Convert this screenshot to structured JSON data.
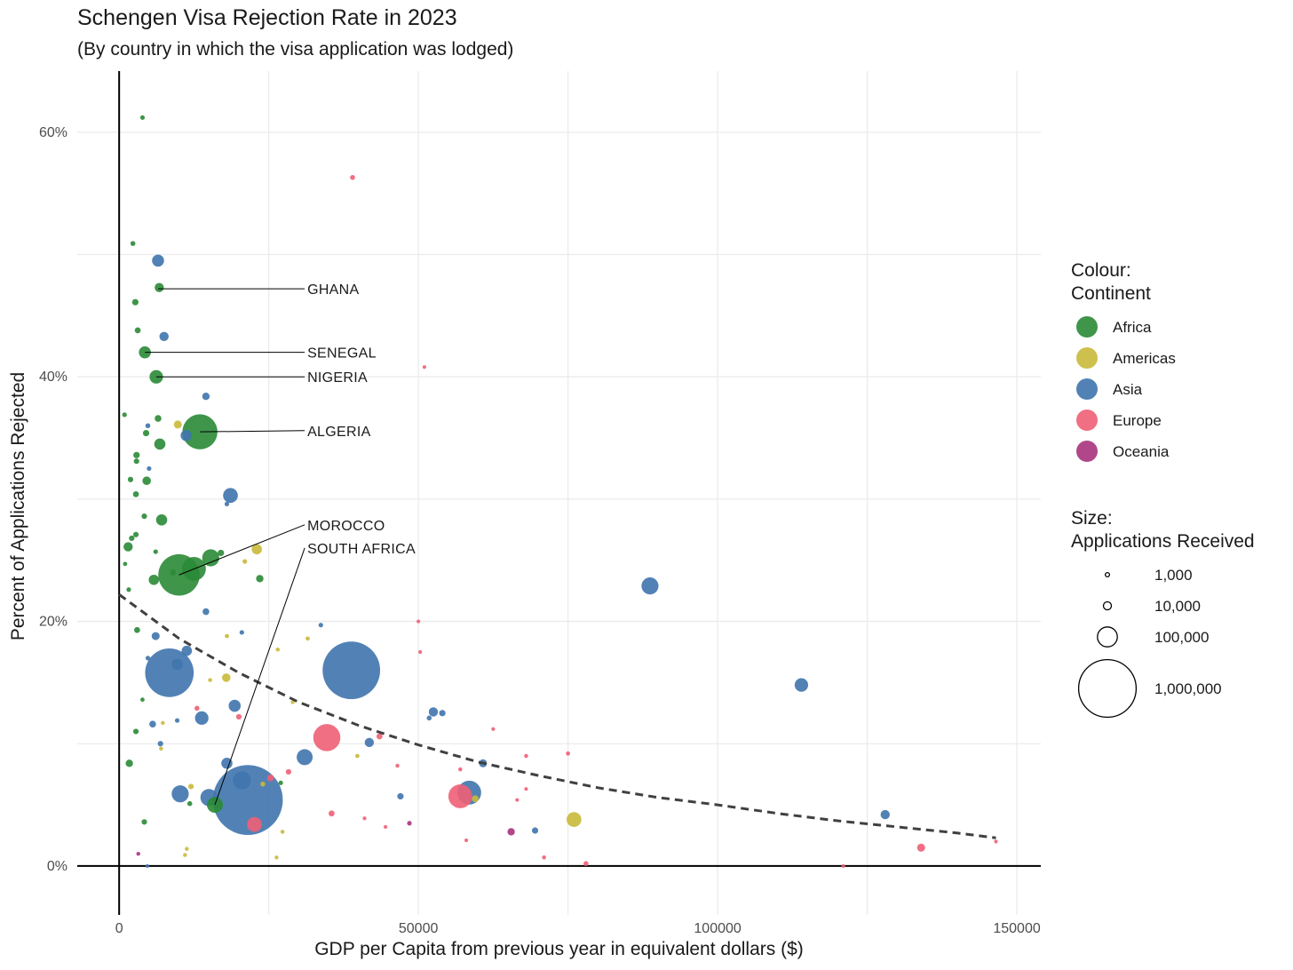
{
  "title": "Schengen Visa Rejection Rate in 2023",
  "subtitle": "(By country in which the visa application was lodged)",
  "chart_data": {
    "type": "scatter",
    "xlabel": "GDP per Capita from previous year in equivalent dollars ($)",
    "ylabel": "Percent of Applications Rejected",
    "xlim": [
      -7000,
      154000
    ],
    "ylim": [
      -4,
      65
    ],
    "x_ticks": [
      {
        "value": 0,
        "label": "0"
      },
      {
        "value": 50000,
        "label": "50000"
      },
      {
        "value": 100000,
        "label": "100000"
      },
      {
        "value": 150000,
        "label": "150000"
      }
    ],
    "y_ticks": [
      {
        "value": 0,
        "label": "0%"
      },
      {
        "value": 20,
        "label": "20%"
      },
      {
        "value": 40,
        "label": "40%"
      },
      {
        "value": 60,
        "label": "60%"
      }
    ],
    "grid": true,
    "colors": {
      "Africa": "#2a8a36",
      "Americas": "#c9b93a",
      "Asia": "#3f74ad",
      "Europe": "#ee5f75",
      "Oceania": "#a8337e"
    },
    "legend_colour": {
      "title": "Colour:\nContinent",
      "items": [
        "Africa",
        "Americas",
        "Asia",
        "Europe",
        "Oceania"
      ]
    },
    "legend_size": {
      "title": "Size:\nApplications Received",
      "items": [
        {
          "value": 1000,
          "label": "1,000"
        },
        {
          "value": 10000,
          "label": "10,000"
        },
        {
          "value": 100000,
          "label": "100,000"
        },
        {
          "value": 1000000,
          "label": "1,000,000"
        }
      ]
    },
    "trend_line": [
      [
        0,
        22.2
      ],
      [
        10000,
        18.6
      ],
      [
        20000,
        15.8
      ],
      [
        30000,
        13.4
      ],
      [
        40000,
        11.5
      ],
      [
        50000,
        9.9
      ],
      [
        60000,
        8.5
      ],
      [
        70000,
        7.4
      ],
      [
        80000,
        6.4
      ],
      [
        90000,
        5.6
      ],
      [
        100000,
        5.0
      ],
      [
        110000,
        4.3
      ],
      [
        120000,
        3.7
      ],
      [
        130000,
        3.2
      ],
      [
        140000,
        2.7
      ],
      [
        146500,
        2.3
      ]
    ],
    "annotations": [
      {
        "label": "GHANA",
        "x": 6500,
        "y": 47.2,
        "lx": 31000,
        "ly": 47.2
      },
      {
        "label": "SENEGAL",
        "x": 4300,
        "y": 42.0,
        "lx": 31000,
        "ly": 42.0
      },
      {
        "label": "NIGERIA",
        "x": 6200,
        "y": 40.0,
        "lx": 31000,
        "ly": 40.0
      },
      {
        "label": "ALGERIA",
        "x": 13500,
        "y": 35.5,
        "lx": 31000,
        "ly": 35.6
      },
      {
        "label": "MOROCCO",
        "x": 10000,
        "y": 23.8,
        "lx": 31000,
        "ly": 27.9
      },
      {
        "label": "SOUTH AFRICA",
        "x": 16000,
        "y": 5.0,
        "lx": 31000,
        "ly": 26.0
      }
    ],
    "points": [
      {
        "x": 3900,
        "y": 61.2,
        "c": "Africa",
        "n": 1500
      },
      {
        "x": 39000,
        "y": 56.3,
        "c": "Europe",
        "n": 2000
      },
      {
        "x": 2300,
        "y": 50.9,
        "c": "Africa",
        "n": 2000
      },
      {
        "x": 6500,
        "y": 49.5,
        "c": "Asia",
        "n": 30000
      },
      {
        "x": 6700,
        "y": 47.3,
        "c": "Africa",
        "n": 15000
      },
      {
        "x": 2700,
        "y": 46.1,
        "c": "Africa",
        "n": 5000
      },
      {
        "x": 3100,
        "y": 43.8,
        "c": "Africa",
        "n": 4000
      },
      {
        "x": 7500,
        "y": 43.3,
        "c": "Asia",
        "n": 15000
      },
      {
        "x": 4300,
        "y": 42.0,
        "c": "Africa",
        "n": 30000
      },
      {
        "x": 51000,
        "y": 40.8,
        "c": "Europe",
        "n": 500
      },
      {
        "x": 6200,
        "y": 40.0,
        "c": "Africa",
        "n": 40000
      },
      {
        "x": 14500,
        "y": 38.4,
        "c": "Asia",
        "n": 8000
      },
      {
        "x": 900,
        "y": 36.9,
        "c": "Africa",
        "n": 1500
      },
      {
        "x": 6500,
        "y": 36.6,
        "c": "Africa",
        "n": 6000
      },
      {
        "x": 9800,
        "y": 36.1,
        "c": "Americas",
        "n": 10000
      },
      {
        "x": 4800,
        "y": 36.0,
        "c": "Asia",
        "n": 2000
      },
      {
        "x": 4500,
        "y": 35.4,
        "c": "Africa",
        "n": 5000
      },
      {
        "x": 11200,
        "y": 35.2,
        "c": "Asia",
        "n": 25000
      },
      {
        "x": 13500,
        "y": 35.5,
        "c": "Africa",
        "n": 350000
      },
      {
        "x": 6800,
        "y": 34.5,
        "c": "Africa",
        "n": 25000
      },
      {
        "x": 2900,
        "y": 33.6,
        "c": "Africa",
        "n": 5000
      },
      {
        "x": 2900,
        "y": 33.1,
        "c": "Africa",
        "n": 3000
      },
      {
        "x": 5000,
        "y": 32.5,
        "c": "Asia",
        "n": 1500
      },
      {
        "x": 1900,
        "y": 31.6,
        "c": "Africa",
        "n": 3000
      },
      {
        "x": 4600,
        "y": 31.5,
        "c": "Africa",
        "n": 12000
      },
      {
        "x": 2800,
        "y": 30.4,
        "c": "Africa",
        "n": 4000
      },
      {
        "x": 18600,
        "y": 30.3,
        "c": "Asia",
        "n": 50000
      },
      {
        "x": 18000,
        "y": 29.6,
        "c": "Asia",
        "n": 1500
      },
      {
        "x": 4200,
        "y": 28.6,
        "c": "Africa",
        "n": 3000
      },
      {
        "x": 7100,
        "y": 28.3,
        "c": "Africa",
        "n": 25000
      },
      {
        "x": 2800,
        "y": 27.1,
        "c": "Africa",
        "n": 3000
      },
      {
        "x": 2100,
        "y": 26.8,
        "c": "Africa",
        "n": 3000
      },
      {
        "x": 1500,
        "y": 26.1,
        "c": "Africa",
        "n": 15000
      },
      {
        "x": 23000,
        "y": 25.9,
        "c": "Americas",
        "n": 20000
      },
      {
        "x": 6100,
        "y": 25.7,
        "c": "Africa",
        "n": 1500
      },
      {
        "x": 17000,
        "y": 25.6,
        "c": "Africa",
        "n": 5000
      },
      {
        "x": 15300,
        "y": 25.2,
        "c": "Africa",
        "n": 70000
      },
      {
        "x": 21000,
        "y": 24.9,
        "c": "Americas",
        "n": 1500
      },
      {
        "x": 1000,
        "y": 24.7,
        "c": "Africa",
        "n": 1000
      },
      {
        "x": 12500,
        "y": 24.3,
        "c": "Africa",
        "n": 150000
      },
      {
        "x": 9000,
        "y": 24.0,
        "c": "Africa",
        "n": 4000
      },
      {
        "x": 10000,
        "y": 23.8,
        "c": "Africa",
        "n": 500000
      },
      {
        "x": 23500,
        "y": 23.5,
        "c": "Africa",
        "n": 8000
      },
      {
        "x": 5800,
        "y": 23.4,
        "c": "Africa",
        "n": 20000
      },
      {
        "x": 1600,
        "y": 22.6,
        "c": "Africa",
        "n": 1500
      },
      {
        "x": 88700,
        "y": 22.9,
        "c": "Asia",
        "n": 70000
      },
      {
        "x": 14500,
        "y": 20.8,
        "c": "Asia",
        "n": 6000
      },
      {
        "x": 50000,
        "y": 20.0,
        "c": "Europe",
        "n": 500
      },
      {
        "x": 33700,
        "y": 19.7,
        "c": "Asia",
        "n": 1500
      },
      {
        "x": 3000,
        "y": 19.3,
        "c": "Africa",
        "n": 4000
      },
      {
        "x": 20500,
        "y": 19.1,
        "c": "Asia",
        "n": 1500
      },
      {
        "x": 18000,
        "y": 18.8,
        "c": "Americas",
        "n": 1000
      },
      {
        "x": 6100,
        "y": 18.8,
        "c": "Asia",
        "n": 10000
      },
      {
        "x": 31500,
        "y": 18.6,
        "c": "Americas",
        "n": 1000
      },
      {
        "x": 26500,
        "y": 17.7,
        "c": "Americas",
        "n": 800
      },
      {
        "x": 50300,
        "y": 17.5,
        "c": "Europe",
        "n": 500
      },
      {
        "x": 11300,
        "y": 17.6,
        "c": "Asia",
        "n": 20000
      },
      {
        "x": 4800,
        "y": 17.0,
        "c": "Asia",
        "n": 1500
      },
      {
        "x": 9700,
        "y": 16.5,
        "c": "Asia",
        "n": 25000
      },
      {
        "x": 8400,
        "y": 15.8,
        "c": "Asia",
        "n": 700000
      },
      {
        "x": 38800,
        "y": 16.0,
        "c": "Asia",
        "n": 1000000
      },
      {
        "x": 15200,
        "y": 15.2,
        "c": "Americas",
        "n": 800
      },
      {
        "x": 17900,
        "y": 15.4,
        "c": "Americas",
        "n": 12000
      },
      {
        "x": 114000,
        "y": 14.8,
        "c": "Asia",
        "n": 40000
      },
      {
        "x": 3900,
        "y": 13.6,
        "c": "Africa",
        "n": 1000
      },
      {
        "x": 29000,
        "y": 13.4,
        "c": "Americas",
        "n": 700
      },
      {
        "x": 19300,
        "y": 13.1,
        "c": "Asia",
        "n": 30000
      },
      {
        "x": 13000,
        "y": 12.9,
        "c": "Europe",
        "n": 2000
      },
      {
        "x": 52500,
        "y": 12.6,
        "c": "Asia",
        "n": 15000
      },
      {
        "x": 54000,
        "y": 12.5,
        "c": "Asia",
        "n": 5000
      },
      {
        "x": 20000,
        "y": 12.2,
        "c": "Europe",
        "n": 3000
      },
      {
        "x": 51800,
        "y": 12.1,
        "c": "Asia",
        "n": 2000
      },
      {
        "x": 9700,
        "y": 11.9,
        "c": "Asia",
        "n": 1500
      },
      {
        "x": 13800,
        "y": 12.1,
        "c": "Asia",
        "n": 40000
      },
      {
        "x": 5600,
        "y": 11.6,
        "c": "Asia",
        "n": 6000
      },
      {
        "x": 7300,
        "y": 11.7,
        "c": "Americas",
        "n": 700
      },
      {
        "x": 62500,
        "y": 11.2,
        "c": "Europe",
        "n": 500
      },
      {
        "x": 2800,
        "y": 11.0,
        "c": "Africa",
        "n": 3000
      },
      {
        "x": 34700,
        "y": 10.5,
        "c": "Europe",
        "n": 200000
      },
      {
        "x": 43500,
        "y": 10.6,
        "c": "Europe",
        "n": 4000
      },
      {
        "x": 41800,
        "y": 10.1,
        "c": "Asia",
        "n": 15000
      },
      {
        "x": 6900,
        "y": 10.0,
        "c": "Asia",
        "n": 3000
      },
      {
        "x": 7000,
        "y": 9.6,
        "c": "Americas",
        "n": 800
      },
      {
        "x": 75000,
        "y": 9.2,
        "c": "Europe",
        "n": 1000
      },
      {
        "x": 68000,
        "y": 9.0,
        "c": "Europe",
        "n": 800
      },
      {
        "x": 31000,
        "y": 8.9,
        "c": "Asia",
        "n": 60000
      },
      {
        "x": 39800,
        "y": 9.0,
        "c": "Americas",
        "n": 1000
      },
      {
        "x": 1700,
        "y": 8.4,
        "c": "Africa",
        "n": 8000
      },
      {
        "x": 18000,
        "y": 8.4,
        "c": "Asia",
        "n": 25000
      },
      {
        "x": 60800,
        "y": 8.4,
        "c": "Asia",
        "n": 10000
      },
      {
        "x": 46500,
        "y": 8.2,
        "c": "Europe",
        "n": 700
      },
      {
        "x": 57000,
        "y": 7.9,
        "c": "Europe",
        "n": 800
      },
      {
        "x": 28300,
        "y": 7.7,
        "c": "Europe",
        "n": 3000
      },
      {
        "x": 25300,
        "y": 7.2,
        "c": "Europe",
        "n": 6000
      },
      {
        "x": 20500,
        "y": 7.0,
        "c": "Asia",
        "n": 80000
      },
      {
        "x": 27000,
        "y": 6.8,
        "c": "Africa",
        "n": 1500
      },
      {
        "x": 24000,
        "y": 6.7,
        "c": "Americas",
        "n": 2000
      },
      {
        "x": 12000,
        "y": 6.5,
        "c": "Americas",
        "n": 3000
      },
      {
        "x": 68000,
        "y": 6.3,
        "c": "Europe",
        "n": 500
      },
      {
        "x": 58500,
        "y": 6.0,
        "c": "Asia",
        "n": 150000
      },
      {
        "x": 10200,
        "y": 5.9,
        "c": "Asia",
        "n": 70000
      },
      {
        "x": 59500,
        "y": 5.5,
        "c": "Americas",
        "n": 6000
      },
      {
        "x": 57000,
        "y": 5.7,
        "c": "Europe",
        "n": 150000
      },
      {
        "x": 47000,
        "y": 5.7,
        "c": "Asia",
        "n": 5000
      },
      {
        "x": 15000,
        "y": 5.6,
        "c": "Asia",
        "n": 70000
      },
      {
        "x": 21500,
        "y": 5.4,
        "c": "Asia",
        "n": 1500000
      },
      {
        "x": 66500,
        "y": 5.4,
        "c": "Europe",
        "n": 500
      },
      {
        "x": 11800,
        "y": 5.1,
        "c": "Africa",
        "n": 2000
      },
      {
        "x": 16000,
        "y": 5.0,
        "c": "Africa",
        "n": 60000
      },
      {
        "x": 35500,
        "y": 4.3,
        "c": "Europe",
        "n": 4000
      },
      {
        "x": 41000,
        "y": 3.9,
        "c": "Europe",
        "n": 600
      },
      {
        "x": 4200,
        "y": 3.6,
        "c": "Africa",
        "n": 3000
      },
      {
        "x": 22600,
        "y": 3.4,
        "c": "Europe",
        "n": 50000
      },
      {
        "x": 48500,
        "y": 3.5,
        "c": "Oceania",
        "n": 1500
      },
      {
        "x": 44500,
        "y": 3.2,
        "c": "Europe",
        "n": 500
      },
      {
        "x": 76000,
        "y": 3.8,
        "c": "Americas",
        "n": 50000
      },
      {
        "x": 128000,
        "y": 4.2,
        "c": "Asia",
        "n": 15000
      },
      {
        "x": 65500,
        "y": 2.8,
        "c": "Oceania",
        "n": 8000
      },
      {
        "x": 69500,
        "y": 2.9,
        "c": "Asia",
        "n": 5000
      },
      {
        "x": 27300,
        "y": 2.8,
        "c": "Americas",
        "n": 800
      },
      {
        "x": 58000,
        "y": 2.1,
        "c": "Europe",
        "n": 500
      },
      {
        "x": 11300,
        "y": 1.4,
        "c": "Americas",
        "n": 700
      },
      {
        "x": 3200,
        "y": 1.0,
        "c": "Oceania",
        "n": 700
      },
      {
        "x": 11000,
        "y": 0.9,
        "c": "Americas",
        "n": 700
      },
      {
        "x": 26300,
        "y": 0.7,
        "c": "Americas",
        "n": 600
      },
      {
        "x": 71000,
        "y": 0.7,
        "c": "Europe",
        "n": 800
      },
      {
        "x": 134000,
        "y": 1.5,
        "c": "Europe",
        "n": 10000
      },
      {
        "x": 146500,
        "y": 2.0,
        "c": "Europe",
        "n": 500
      },
      {
        "x": 78000,
        "y": 0.2,
        "c": "Europe",
        "n": 2000
      },
      {
        "x": 121000,
        "y": 0.0,
        "c": "Europe",
        "n": 500
      },
      {
        "x": 4700,
        "y": 0.0,
        "c": "Asia",
        "n": 500
      }
    ]
  }
}
